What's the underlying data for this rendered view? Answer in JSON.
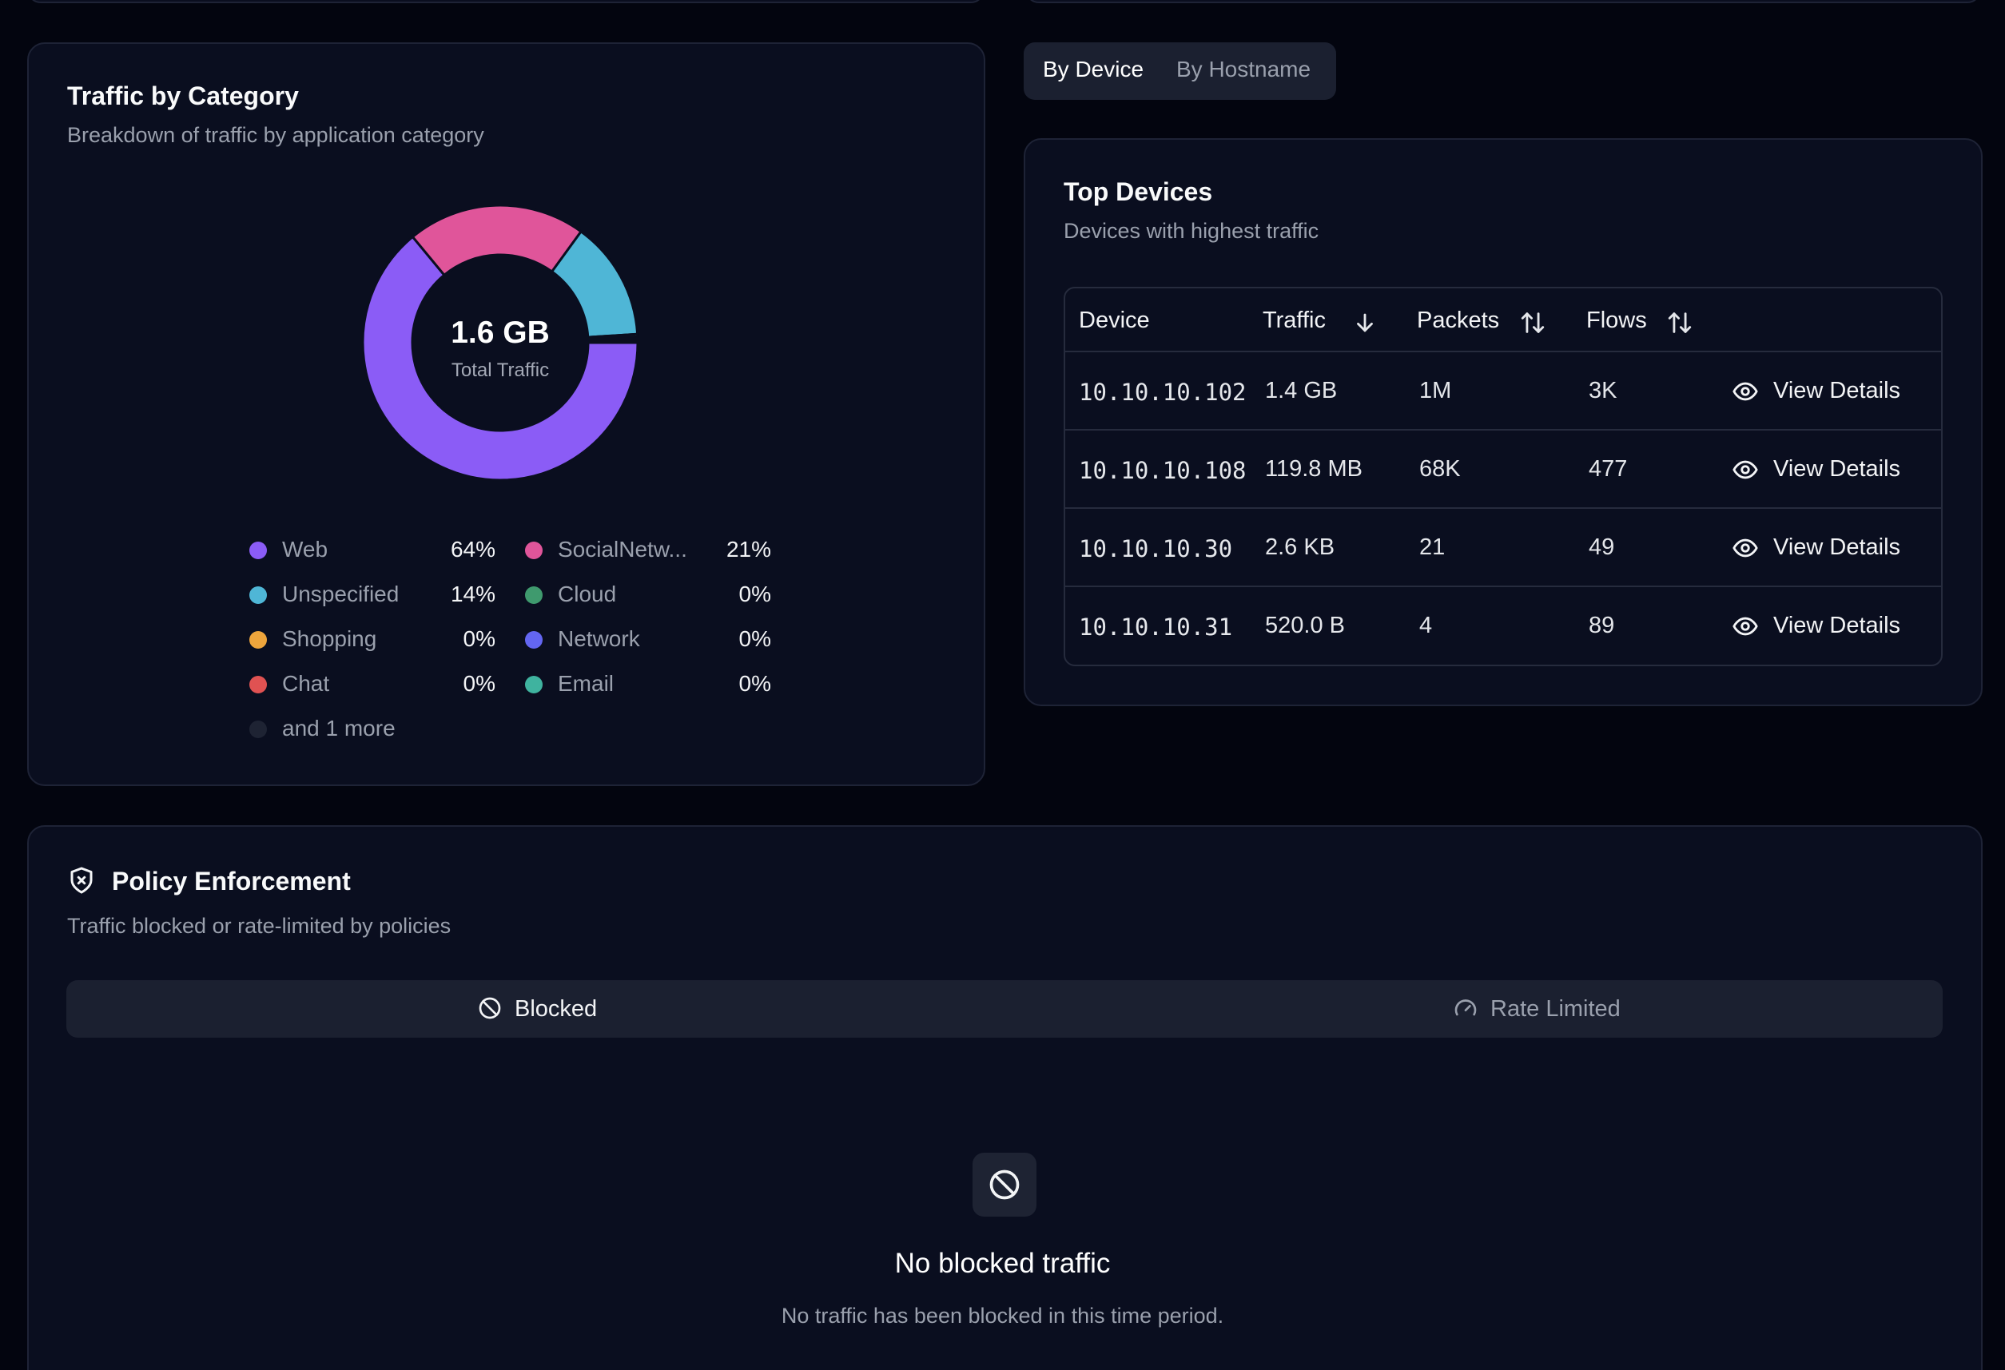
{
  "category_card": {
    "title": "Traffic by Category",
    "subtitle": "Breakdown of traffic by application category",
    "total_value": "1.6 GB",
    "total_label": "Total Traffic",
    "legend": [
      {
        "name": "Web",
        "pct": "64%",
        "color": "#8b5cf6"
      },
      {
        "name": "SocialNetw...",
        "pct": "21%",
        "color": "#e0559a"
      },
      {
        "name": "Unspecified",
        "pct": "14%",
        "color": "#4fb6d6"
      },
      {
        "name": "Cloud",
        "pct": "0%",
        "color": "#3f9a6e"
      },
      {
        "name": "Shopping",
        "pct": "0%",
        "color": "#eea53c"
      },
      {
        "name": "Network",
        "pct": "0%",
        "color": "#6366f1"
      },
      {
        "name": "Chat",
        "pct": "0%",
        "color": "#e05252"
      },
      {
        "name": "Email",
        "pct": "0%",
        "color": "#3fb39f"
      }
    ],
    "more_label": "and 1 more"
  },
  "chart_data": {
    "type": "pie",
    "categories": [
      "Web",
      "SocialNetw...",
      "Unspecified",
      "Cloud",
      "Shopping",
      "Network",
      "Chat",
      "Email"
    ],
    "values": [
      64,
      21,
      14,
      0.3,
      0.2,
      0.2,
      0.15,
      0.15
    ],
    "colors": [
      "#8b5cf6",
      "#e0559a",
      "#4fb6d6",
      "#3f9a6e",
      "#eea53c",
      "#6366f1",
      "#e05252",
      "#3fb39f"
    ]
  },
  "view_toggle": {
    "device_label": "By Device",
    "hostname_label": "By Hostname"
  },
  "devices_card": {
    "title": "Top Devices",
    "subtitle": "Devices with highest traffic",
    "columns": [
      "Device",
      "Traffic",
      "Packets",
      "Flows"
    ],
    "rows": [
      {
        "device": "10.10.10.102",
        "traffic": "1.4 GB",
        "packets": "1M",
        "flows": "3K",
        "action": "View Details"
      },
      {
        "device": "10.10.10.108",
        "traffic": "119.8 MB",
        "packets": "68K",
        "flows": "477",
        "action": "View Details"
      },
      {
        "device": "10.10.10.30",
        "traffic": "2.6 KB",
        "packets": "21",
        "flows": "49",
        "action": "View Details"
      },
      {
        "device": "10.10.10.31",
        "traffic": "520.0 B",
        "packets": "4",
        "flows": "89",
        "action": "View Details"
      }
    ]
  },
  "policy_card": {
    "title": "Policy Enforcement",
    "subtitle": "Traffic blocked or rate-limited by policies",
    "tab_blocked": "Blocked",
    "tab_rate_limited": "Rate Limited",
    "empty_title": "No blocked traffic",
    "empty_subtitle": "No traffic has been blocked in this time period."
  }
}
